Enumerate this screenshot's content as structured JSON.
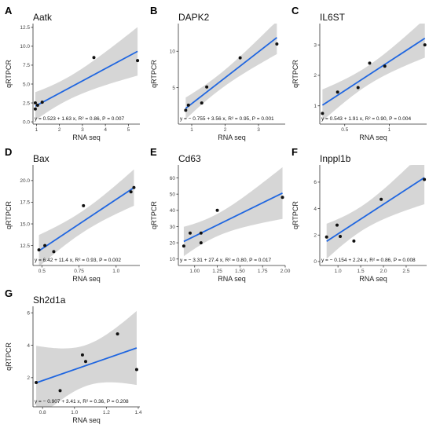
{
  "colors": {
    "band": "#d4d4d4",
    "line": "#1f66e0",
    "point": "#111111",
    "axis": "#333333"
  },
  "chart_data": [
    {
      "type": "scatter",
      "panel": "A",
      "title": "Aatk",
      "xlabel": "RNA seq",
      "ylabel": "qRTPCR",
      "xlim": [
        0.85,
        5.5
      ],
      "ylim": [
        -0.3,
        13
      ],
      "xticks": [
        1,
        2,
        3,
        4,
        5
      ],
      "yticks": [
        0.0,
        2.5,
        5.0,
        7.5,
        10.0,
        12.5
      ],
      "ytick_labels": [
        "0.0",
        "2.5",
        "5.0",
        "7.5",
        "10.0",
        "12.5"
      ],
      "points": [
        [
          0.95,
          1.7
        ],
        [
          1.05,
          2.2
        ],
        [
          0.95,
          2.5
        ],
        [
          1.25,
          2.6
        ],
        [
          3.5,
          8.5
        ],
        [
          5.4,
          8.1
        ]
      ],
      "fit": {
        "intercept": 0.523,
        "slope": 1.63
      },
      "equation": "y = 0.523 + 1.63 x, R² = 0.86, P = 0.007"
    },
    {
      "type": "scatter",
      "panel": "B",
      "title": "DAPK2",
      "xlabel": "RNA seq",
      "ylabel": "qRTPCR",
      "xlim": [
        0.6,
        3.8
      ],
      "ylim": [
        0,
        13.8
      ],
      "xticks": [
        1,
        2,
        3
      ],
      "yticks": [
        5,
        10
      ],
      "ytick_labels": [
        "5",
        "10"
      ],
      "points": [
        [
          0.82,
          1.9
        ],
        [
          0.9,
          2.6
        ],
        [
          1.3,
          2.9
        ],
        [
          1.45,
          5.1
        ],
        [
          2.45,
          9.1
        ],
        [
          3.55,
          11.0
        ]
      ],
      "fit": {
        "intercept": -0.755,
        "slope": 3.56
      },
      "equation": "y = − 0.755 + 3.56 x, R² = 0.95, P = 0.001"
    },
    {
      "type": "scatter",
      "panel": "C",
      "title": "IL6ST",
      "xlabel": "RNA seq",
      "ylabel": "qRTPCR",
      "xlim": [
        0.22,
        1.42
      ],
      "ylim": [
        0.4,
        3.7
      ],
      "xticks": [
        0.5,
        1.0
      ],
      "yticks": [
        1,
        2,
        3
      ],
      "ytick_labels": [
        "1",
        "2",
        "3"
      ],
      "points": [
        [
          0.25,
          0.75
        ],
        [
          0.42,
          1.45
        ],
        [
          0.65,
          1.6
        ],
        [
          0.78,
          2.4
        ],
        [
          0.95,
          2.3
        ],
        [
          1.4,
          3.0
        ]
      ],
      "fit": {
        "intercept": 0.543,
        "slope": 1.91
      },
      "equation": "y = 0.543 + 1.91 x, R² = 0.90, P = 0.004"
    },
    {
      "type": "scatter",
      "panel": "D",
      "title": "Bax",
      "xlabel": "RNA seq",
      "ylabel": "qRTPCR",
      "xlim": [
        0.44,
        1.16
      ],
      "ylim": [
        10.2,
        21.8
      ],
      "xticks": [
        0.5,
        0.75,
        1.0
      ],
      "xtick_labels": [
        "0.5",
        "0.75",
        "1.0"
      ],
      "yticks": [
        12.5,
        15.0,
        17.5,
        20.0
      ],
      "ytick_labels": [
        "12.5",
        "15.0",
        "17.5",
        "20.0"
      ],
      "points": [
        [
          0.48,
          12.0
        ],
        [
          0.52,
          12.5
        ],
        [
          0.58,
          11.8
        ],
        [
          0.78,
          17.1
        ],
        [
          1.1,
          18.7
        ],
        [
          1.12,
          19.2
        ]
      ],
      "fit": {
        "intercept": 6.42,
        "slope": 11.4
      },
      "equation": "y = 6.42 + 11.4 x, R² = 0.93, P = 0.002"
    },
    {
      "type": "scatter",
      "panel": "E",
      "title": "Cd63",
      "xlabel": "RNA seq",
      "ylabel": "qRTPCR",
      "xlim": [
        0.82,
        2.0
      ],
      "ylim": [
        6,
        68
      ],
      "xticks": [
        1.0,
        1.25,
        1.5,
        1.75,
        2.0
      ],
      "xtick_labels": [
        "1.00",
        "1.25",
        "1.50",
        "1.75",
        "2.00"
      ],
      "yticks": [
        10,
        20,
        30,
        40,
        50,
        60
      ],
      "ytick_labels": [
        "10",
        "20",
        "30",
        "40",
        "50",
        "60"
      ],
      "points": [
        [
          0.88,
          18.0
        ],
        [
          0.95,
          26.0
        ],
        [
          1.07,
          20.0
        ],
        [
          1.07,
          26.0
        ],
        [
          1.25,
          40.0
        ],
        [
          1.97,
          48.0
        ]
      ],
      "fit": {
        "intercept": -3.31,
        "slope": 27.4
      },
      "equation": "y = − 3.31 + 27.4 x, R² = 0.80, P = 0.017"
    },
    {
      "type": "scatter",
      "panel": "F",
      "title": "Inppl1b",
      "xlabel": "RNA seq",
      "ylabel": "qRTPCR",
      "xlim": [
        0.6,
        2.95
      ],
      "ylim": [
        -0.3,
        7.3
      ],
      "xticks": [
        1.0,
        1.5,
        2.0,
        2.5
      ],
      "xtick_labels": [
        "1.0",
        "1.5",
        "2.0",
        "2.5"
      ],
      "yticks": [
        0,
        2,
        4,
        6
      ],
      "ytick_labels": [
        "0",
        "2",
        "4",
        "6"
      ],
      "points": [
        [
          0.75,
          1.85
        ],
        [
          0.98,
          2.75
        ],
        [
          1.05,
          1.9
        ],
        [
          1.35,
          1.55
        ],
        [
          1.95,
          4.7
        ],
        [
          2.9,
          6.2
        ]
      ],
      "fit": {
        "intercept": -0.154,
        "slope": 2.24
      },
      "equation": "y = − 0.154 + 2.24 x, R² = 0.86, P = 0.008"
    },
    {
      "type": "scatter",
      "panel": "G",
      "title": "Sh2d1a",
      "xlabel": "RNA seq",
      "ylabel": "qRTPCR",
      "xlim": [
        0.74,
        1.41
      ],
      "ylim": [
        0.2,
        6.4
      ],
      "xticks": [
        0.8,
        1.0,
        1.2,
        1.4
      ],
      "xtick_labels": [
        "0.8",
        "1.0",
        "1.2",
        "1.4"
      ],
      "yticks": [
        2,
        4,
        6
      ],
      "ytick_labels": [
        "2",
        "4",
        "6"
      ],
      "points": [
        [
          0.76,
          1.7
        ],
        [
          0.91,
          1.2
        ],
        [
          1.05,
          3.4
        ],
        [
          1.07,
          3.0
        ],
        [
          1.27,
          4.7
        ],
        [
          1.39,
          2.5
        ]
      ],
      "fit": {
        "intercept": -0.907,
        "slope": 3.41
      },
      "equation": "y = − 0.907 + 3.41 x, R² = 0.36, P = 0.208"
    }
  ]
}
